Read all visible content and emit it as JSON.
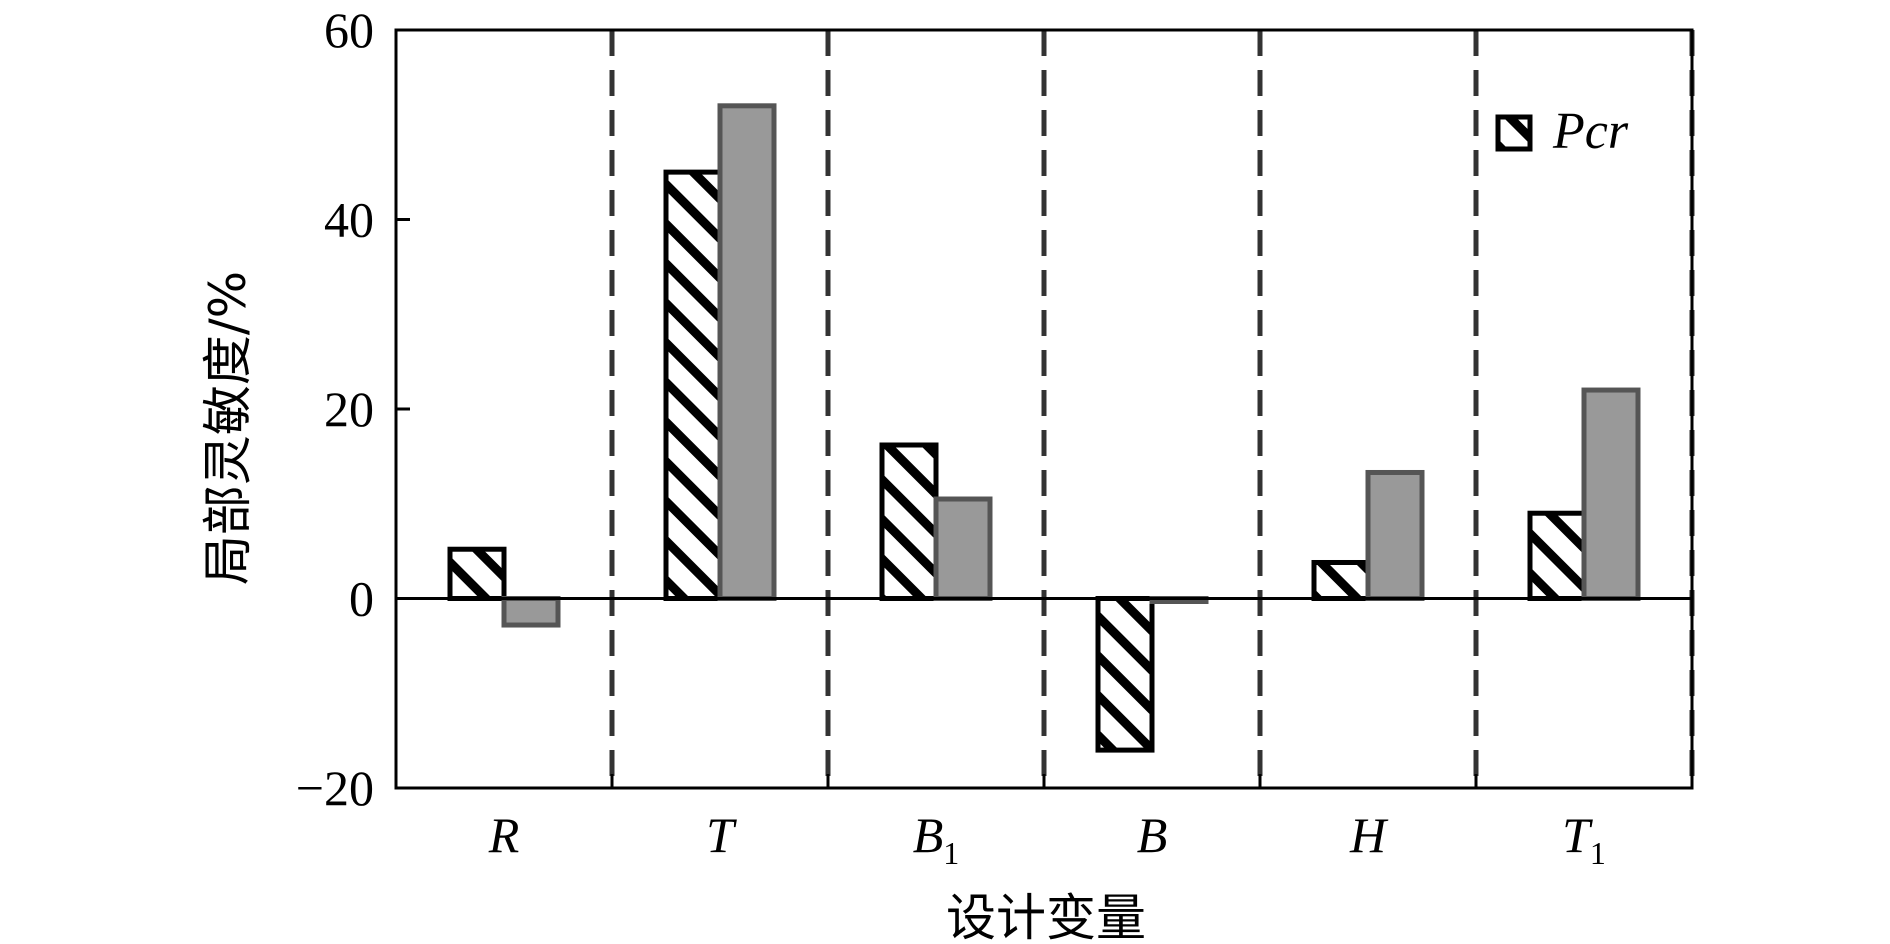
{
  "chart_data": {
    "type": "bar",
    "categories": [
      "R",
      "T",
      "B1",
      "B",
      "H",
      "T1"
    ],
    "category_labels": [
      {
        "main": "R",
        "sub": ""
      },
      {
        "main": "T",
        "sub": ""
      },
      {
        "main": "B",
        "sub": "1"
      },
      {
        "main": "B",
        "sub": ""
      },
      {
        "main": "H",
        "sub": ""
      },
      {
        "main": "T",
        "sub": "1"
      }
    ],
    "series": [
      {
        "name": "Pcr",
        "values": [
          5.2,
          45,
          16.2,
          -16,
          3.8,
          9
        ],
        "fill": "hatched"
      },
      {
        "name": "",
        "values": [
          -2.8,
          52,
          10.5,
          0,
          13.3,
          22
        ],
        "fill": "#999999"
      }
    ],
    "xlabel": "设计变量",
    "ylabel": "局部灵敏度/%",
    "ylim": [
      -20,
      60
    ],
    "yticks": [
      -20,
      0,
      20,
      40,
      60
    ],
    "ytick_labels": [
      "−20",
      "0",
      "20",
      "40",
      "60"
    ],
    "grid": false,
    "category_separators": "dashed",
    "legend": {
      "position": "top-right",
      "entries": [
        "Pcr"
      ]
    }
  },
  "colors": {
    "hatch_stroke": "#000000",
    "gray_fill": "#999999",
    "gray_stroke": "#555555",
    "separator": "#333333"
  }
}
